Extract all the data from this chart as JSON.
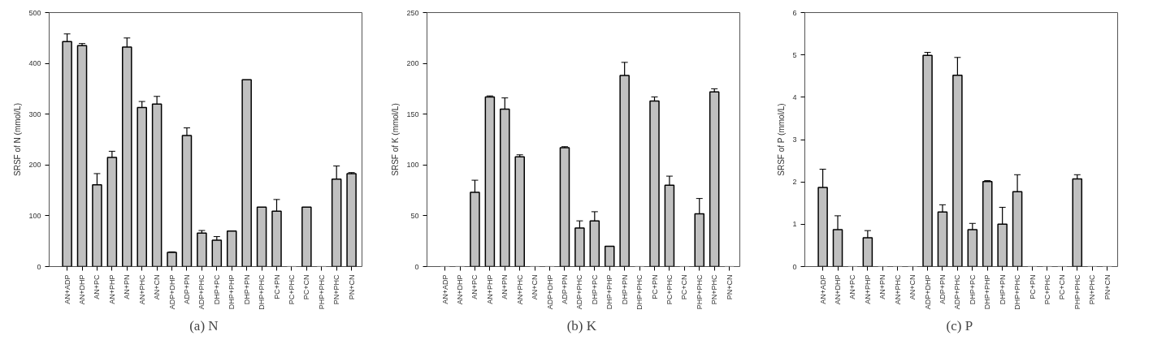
{
  "chart_data": [
    {
      "type": "bar",
      "title": "(a)  N",
      "ylabel": "SRSF of N (mmol/L)",
      "categories": [
        "AN+ADP",
        "AN+DHP",
        "AN+PC",
        "AN+PHP",
        "AN+PN",
        "AN+PHC",
        "AN+CN",
        "ADP+DHP",
        "ADP+PN",
        "ADP+PHC",
        "DHP+PC",
        "DHP+PHP",
        "DHP+PN",
        "DHP+PHC",
        "PC+PN",
        "PC+PHC",
        "PC+CN",
        "PHP+PHC",
        "PN+PHC",
        "PN+CN"
      ],
      "color": "#c0c0c0",
      "values": [
        443,
        435,
        161,
        215,
        432,
        313,
        320,
        28,
        258,
        66,
        52,
        70,
        368,
        117,
        109,
        0,
        117,
        0,
        172,
        183
      ],
      "errors": [
        15,
        4,
        22,
        12,
        18,
        12,
        15,
        1,
        15,
        5,
        7,
        null,
        null,
        null,
        23,
        null,
        null,
        null,
        26,
        2
      ],
      "ylim": [
        0,
        500
      ],
      "yticks": [
        0,
        100,
        200,
        300,
        400,
        500
      ],
      "grid": false
    },
    {
      "type": "bar",
      "title": "(b)  K",
      "ylabel": "SRSF of K (mmol/L)",
      "categories": [
        "AN+ADP",
        "AN+DHP",
        "AN+PC",
        "AN+PHP",
        "AN+PN",
        "AN+PHC",
        "AN+CN",
        "ADP+DHP",
        "ADP+PN",
        "ADP+PHC",
        "DHP+PC",
        "DHP+PHP",
        "DHP+PN",
        "DHP+PHC",
        "PC+PN",
        "PC+PHC",
        "PC+CN",
        "PHP+PHC",
        "PN+PHC",
        "PN+CN"
      ],
      "color": "#c0c0c0",
      "values": [
        0,
        0,
        73,
        167,
        155,
        108,
        0,
        0,
        117,
        38,
        45,
        20,
        188,
        0,
        163,
        80,
        0,
        52,
        172,
        0
      ],
      "errors": [
        null,
        null,
        12,
        1,
        11,
        2,
        null,
        null,
        1,
        7,
        9,
        null,
        13,
        null,
        4,
        9,
        null,
        15,
        3,
        null
      ],
      "ylim": [
        0,
        250
      ],
      "yticks": [
        0,
        50,
        100,
        150,
        200,
        250
      ],
      "grid": false
    },
    {
      "type": "bar",
      "title": "(c)  P",
      "ylabel": "SRSF of P (mmol/L)",
      "categories": [
        "AN+ADP",
        "AN+DHP",
        "AN+PC",
        "AN+PHP",
        "AN+PN",
        "AN+PHC",
        "AN+CN",
        "ADP+DHP",
        "ADP+PN",
        "ADP+PHC",
        "DHP+PC",
        "DHP+PHP",
        "DHP+PN",
        "DHP+PHC",
        "PC+PN",
        "PC+PHC",
        "PC+CN",
        "PHP+PHC",
        "PN+PHC",
        "PN+CN"
      ],
      "color": "#c0c0c0",
      "values": [
        1.87,
        0.87,
        0,
        0.68,
        0,
        0,
        0,
        4.99,
        1.29,
        4.52,
        0.87,
        2.01,
        1.0,
        1.77,
        0,
        0,
        0,
        2.07,
        0,
        0
      ],
      "errors": [
        0.43,
        0.33,
        null,
        0.17,
        null,
        null,
        null,
        0.07,
        0.17,
        0.42,
        0.15,
        0.02,
        0.4,
        0.4,
        null,
        null,
        null,
        0.1,
        null,
        null
      ],
      "ylim": [
        0,
        6
      ],
      "yticks": [
        0,
        1,
        2,
        3,
        4,
        5,
        6
      ],
      "grid": false
    }
  ]
}
